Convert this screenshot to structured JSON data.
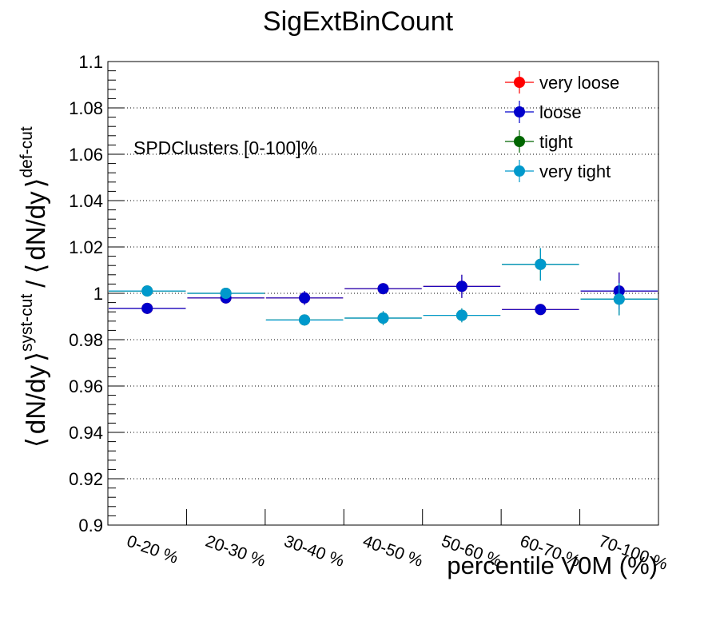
{
  "chart_data": {
    "type": "scatter",
    "title": "SigExtBinCount",
    "annotation": "SPDClusters [0-100]%",
    "xlabel": "percentile V0M (%)",
    "ylabel": {
      "open1": "⟨",
      "term1": "dN/dy",
      "close1": "⟩",
      "sup1": "syst-cut",
      "slash": "/",
      "open2": "⟨",
      "term2": "dN/dy",
      "close2": "⟩",
      "sup2": "def-cut"
    },
    "categories": [
      "0-20 %",
      "20-30 %",
      "30-40 %",
      "40-50 %",
      "50-60 %",
      "60-70 %",
      "70-100 %"
    ],
    "ylim": [
      0.9,
      1.1
    ],
    "yticks": [
      "0.9",
      "0.92",
      "0.94",
      "0.96",
      "0.98",
      "1",
      "1.02",
      "1.04",
      "1.06",
      "1.08",
      "1.1"
    ],
    "grid": "horizontal dotted",
    "legend_position": "top-right",
    "series": [
      {
        "name": "very loose",
        "color": "#ff0000",
        "values": [
          0.9935,
          0.998,
          0.998,
          1.002,
          1.003,
          0.993,
          1.001
        ],
        "errors": [
          0.001,
          0.002,
          0.003,
          0.002,
          0.005,
          0.001,
          0.008
        ]
      },
      {
        "name": "loose",
        "color": "#0000cc",
        "values": [
          0.9935,
          0.998,
          0.998,
          1.002,
          1.003,
          0.993,
          1.001
        ],
        "errors": [
          0.001,
          0.002,
          0.003,
          0.002,
          0.005,
          0.001,
          0.008
        ]
      },
      {
        "name": "tight",
        "color": "#006600",
        "values": [
          1.001,
          1.0,
          0.9885,
          0.9893,
          0.9905,
          1.0125,
          0.9975
        ],
        "errors": [
          0.001,
          0.002,
          0.002,
          0.003,
          0.003,
          0.007,
          0.007
        ]
      },
      {
        "name": "very tight",
        "color": "#0099cc",
        "values": [
          1.001,
          1.0,
          0.9885,
          0.9893,
          0.9905,
          1.0125,
          0.9975
        ],
        "errors": [
          0.001,
          0.002,
          0.002,
          0.003,
          0.003,
          0.007,
          0.007
        ]
      }
    ]
  }
}
